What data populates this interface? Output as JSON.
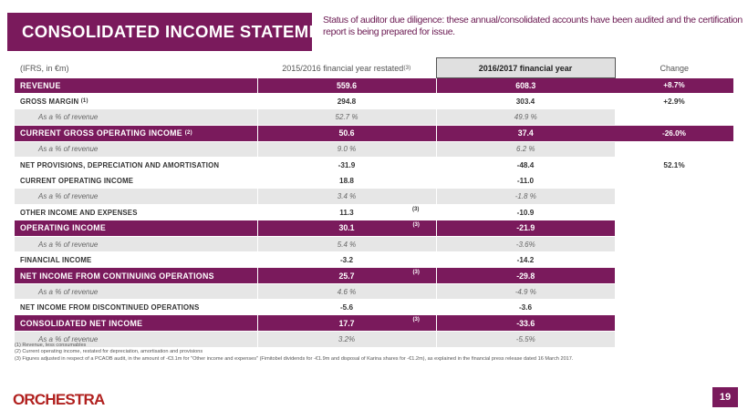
{
  "title": "CONSOLIDATED INCOME STATEMENT",
  "status_lines": [
    "Status of auditor due diligence: these annual/consolidated accounts have been audited and the certification",
    "report is  being prepared for issue."
  ],
  "table": {
    "header": {
      "units": "(IFRS, in €m)",
      "col_a": "2015/2016 financial year restated",
      "col_a_note": "(3)",
      "col_b": "2016/2017 financial year",
      "col_c": "Change"
    },
    "rows": [
      {
        "type": "hl",
        "label": "REVENUE",
        "label_note": "",
        "a": "559.6",
        "a_note": "",
        "b": "608.3",
        "c": "+8.7%",
        "c_filled": true
      },
      {
        "type": "bold",
        "label": "GROSS MARGIN",
        "label_note": "(1)",
        "a": "294.8",
        "a_note": "",
        "b": "303.4",
        "c": "+2.9%"
      },
      {
        "type": "sub",
        "label": "As a % of revenue",
        "label_note": "",
        "a": "52.7 %",
        "a_note": "",
        "b": "49.9 %",
        "c": ""
      },
      {
        "type": "hl",
        "label": "CURRENT GROSS OPERATING INCOME",
        "label_note": "(2)",
        "a": "50.6",
        "a_note": "",
        "b": "37.4",
        "c": "-26.0%",
        "c_filled": true
      },
      {
        "type": "sub",
        "label": "As a % of revenue",
        "label_note": "",
        "a": "9.0 %",
        "a_note": "",
        "b": "6.2 %",
        "c": ""
      },
      {
        "type": "bold",
        "label": "NET PROVISIONS, DEPRECIATION AND AMORTISATION",
        "label_note": "",
        "a": "-31.9",
        "a_note": "",
        "b": "-48.4",
        "c": "52.1%"
      },
      {
        "type": "bold",
        "label": "CURRENT OPERATING INCOME",
        "label_note": "",
        "a": "18.8",
        "a_note": "",
        "b": "-11.0",
        "c": ""
      },
      {
        "type": "sub",
        "label": "As a % of revenue",
        "label_note": "",
        "a": "3.4 %",
        "a_note": "",
        "b": "-1.8 %",
        "c": ""
      },
      {
        "type": "bold",
        "label": "OTHER INCOME AND EXPENSES",
        "label_note": "",
        "a": "11.3",
        "a_note": "(3)",
        "b": "-10.9",
        "c": ""
      },
      {
        "type": "hl",
        "label": "OPERATING INCOME",
        "label_note": "",
        "a": "30.1",
        "a_note": "(3)",
        "b": "-21.9",
        "c": "",
        "c_filled": false
      },
      {
        "type": "sub",
        "label": "As a % of revenue",
        "label_note": "",
        "a": "5.4 %",
        "a_note": "",
        "b": "-3.6%",
        "c": ""
      },
      {
        "type": "bold",
        "label": "FINANCIAL INCOME",
        "label_note": "",
        "a": "-3.2",
        "a_note": "",
        "b": "-14.2",
        "c": ""
      },
      {
        "type": "hl",
        "label": "NET INCOME FROM CONTINUING OPERATIONS",
        "label_note": "",
        "a": "25.7",
        "a_note": "(3)",
        "b": "-29.8",
        "c": "",
        "c_filled": false
      },
      {
        "type": "sub",
        "label": "As a % of revenue",
        "label_note": "",
        "a": "4.6 %",
        "a_note": "",
        "b": "-4.9 %",
        "c": ""
      },
      {
        "type": "bold",
        "label": "NET INCOME FROM DISCONTINUED OPERATIONS",
        "label_note": "",
        "a": "-5.6",
        "a_note": "",
        "b": "-3.6",
        "c": ""
      },
      {
        "type": "hl",
        "label": "CONSOLIDATED NET INCOME",
        "label_note": "",
        "a": "17.7",
        "a_note": "(3)",
        "b": "-33.6",
        "c": "",
        "c_filled": false
      },
      {
        "type": "sub",
        "label": "As a % of revenue",
        "label_note": "",
        "a": "3.2%",
        "a_note": "",
        "b": "-5.5%",
        "c": ""
      }
    ]
  },
  "footnotes": [
    "(1) Revenue, less consumables",
    "(2) Current operating income, restated for depreciation, amortisation and provisions",
    "(3) Figures adjusted in respect of a PCAOB audit, in the amount of -€3.1m for \"Other income and expenses\" (Fimitobel dividends for -€1.9m and disposal of Karina shares for -€1.2m), as explained in the financial press release dated 16 March 2017."
  ],
  "logo": "ORCHESTRA",
  "page_number": "19",
  "colors": {
    "brand": "#7a1a5c",
    "logo": "#b1211f",
    "subrow": "#e6e6e6"
  }
}
